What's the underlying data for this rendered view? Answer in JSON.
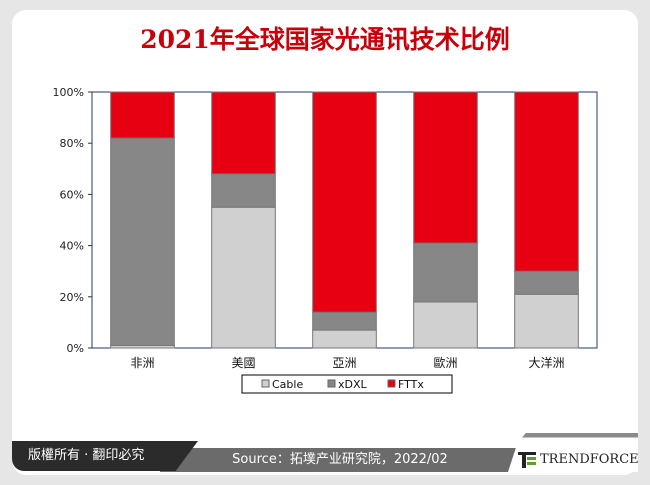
{
  "chart_data": {
    "type": "bar",
    "stacked": true,
    "title": "2021年全球国家光通讯技术比例",
    "categories": [
      "非洲",
      "美國",
      "亞洲",
      "歐洲",
      "大洋洲"
    ],
    "series": [
      {
        "name": "Cable",
        "color": "#d0d0d0",
        "values": [
          1,
          55,
          7,
          18,
          21
        ]
      },
      {
        "name": "xDXL",
        "color": "#878787",
        "values": [
          81,
          13,
          7,
          23,
          9
        ]
      },
      {
        "name": "FTTx",
        "color": "#e60012",
        "values": [
          18,
          32,
          86,
          59,
          70
        ]
      }
    ],
    "ylim": [
      0,
      100
    ],
    "yticks": [
      "0%",
      "20%",
      "40%",
      "60%",
      "80%",
      "100%"
    ],
    "grid": false,
    "legend": "bottom"
  },
  "footer": {
    "copyright": "版權所有 · 翻印必究",
    "source": "Source：拓墣产业研究院，2022/02",
    "logo": "TRENDFORCE"
  }
}
